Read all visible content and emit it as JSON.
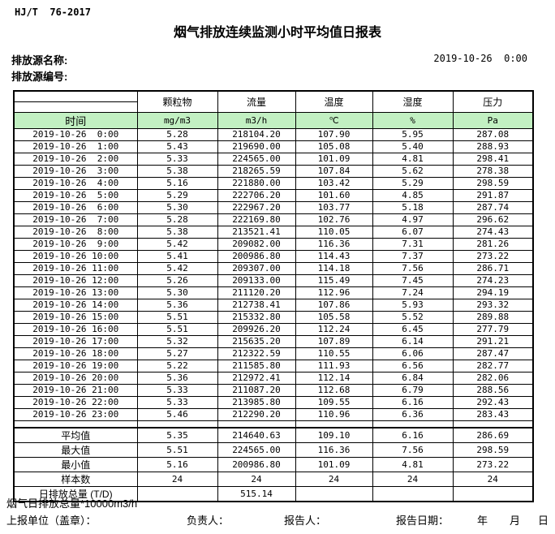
{
  "meta": {
    "standard": "HJ/T  76-2017",
    "title": "烟气排放连续监测小时平均值日报表",
    "source_name_label": "排放源名称:",
    "source_code_label": "排放源编号:",
    "report_datetime": "2019-10-26  0:00"
  },
  "colors": {
    "header_green": "#c2f0c2"
  },
  "table": {
    "time_header": "时间",
    "columns": [
      "颗粒物",
      "流量",
      "温度",
      "湿度",
      "压力"
    ],
    "units": [
      "mg/m3",
      "m3/h",
      "℃",
      "%",
      "Pa"
    ],
    "rows": [
      {
        "time": "2019-10-26  0:00",
        "values": [
          "5.28",
          "218104.20",
          "107.90",
          "5.95",
          "287.08"
        ]
      },
      {
        "time": "2019-10-26  1:00",
        "values": [
          "5.43",
          "219690.00",
          "105.08",
          "5.40",
          "288.93"
        ]
      },
      {
        "time": "2019-10-26  2:00",
        "values": [
          "5.33",
          "224565.00",
          "101.09",
          "4.81",
          "298.41"
        ]
      },
      {
        "time": "2019-10-26  3:00",
        "values": [
          "5.38",
          "218265.59",
          "107.84",
          "5.62",
          "278.38"
        ]
      },
      {
        "time": "2019-10-26  4:00",
        "values": [
          "5.16",
          "221880.00",
          "103.42",
          "5.29",
          "298.59"
        ]
      },
      {
        "time": "2019-10-26  5:00",
        "values": [
          "5.29",
          "222706.20",
          "101.60",
          "4.85",
          "291.87"
        ]
      },
      {
        "time": "2019-10-26  6:00",
        "values": [
          "5.30",
          "222967.20",
          "103.77",
          "5.18",
          "287.74"
        ]
      },
      {
        "time": "2019-10-26  7:00",
        "values": [
          "5.28",
          "222169.80",
          "102.76",
          "4.97",
          "296.62"
        ]
      },
      {
        "time": "2019-10-26  8:00",
        "values": [
          "5.38",
          "213521.41",
          "110.05",
          "6.07",
          "274.43"
        ]
      },
      {
        "time": "2019-10-26  9:00",
        "values": [
          "5.42",
          "209082.00",
          "116.36",
          "7.31",
          "281.26"
        ]
      },
      {
        "time": "2019-10-26 10:00",
        "values": [
          "5.41",
          "200986.80",
          "114.43",
          "7.37",
          "273.22"
        ]
      },
      {
        "time": "2019-10-26 11:00",
        "values": [
          "5.42",
          "209307.00",
          "114.18",
          "7.56",
          "286.71"
        ]
      },
      {
        "time": "2019-10-26 12:00",
        "values": [
          "5.26",
          "209133.00",
          "115.49",
          "7.45",
          "274.23"
        ]
      },
      {
        "time": "2019-10-26 13:00",
        "values": [
          "5.30",
          "211120.20",
          "112.96",
          "7.24",
          "294.19"
        ]
      },
      {
        "time": "2019-10-26 14:00",
        "values": [
          "5.36",
          "212738.41",
          "107.86",
          "5.93",
          "293.32"
        ]
      },
      {
        "time": "2019-10-26 15:00",
        "values": [
          "5.51",
          "215332.80",
          "105.58",
          "5.52",
          "289.88"
        ]
      },
      {
        "time": "2019-10-26 16:00",
        "values": [
          "5.51",
          "209926.20",
          "112.24",
          "6.45",
          "277.79"
        ]
      },
      {
        "time": "2019-10-26 17:00",
        "values": [
          "5.32",
          "215635.20",
          "107.89",
          "6.14",
          "291.21"
        ]
      },
      {
        "time": "2019-10-26 18:00",
        "values": [
          "5.27",
          "212322.59",
          "110.55",
          "6.06",
          "287.47"
        ]
      },
      {
        "time": "2019-10-26 19:00",
        "values": [
          "5.22",
          "211585.80",
          "111.93",
          "6.56",
          "282.77"
        ]
      },
      {
        "time": "2019-10-26 20:00",
        "values": [
          "5.36",
          "212972.41",
          "112.14",
          "6.84",
          "282.06"
        ]
      },
      {
        "time": "2019-10-26 21:00",
        "values": [
          "5.33",
          "211087.20",
          "112.68",
          "6.79",
          "288.56"
        ]
      },
      {
        "time": "2019-10-26 22:00",
        "values": [
          "5.33",
          "213985.80",
          "109.55",
          "6.16",
          "292.43"
        ]
      },
      {
        "time": "2019-10-26 23:00",
        "values": [
          "5.46",
          "212290.20",
          "110.96",
          "6.36",
          "283.43"
        ]
      }
    ],
    "summary": [
      {
        "label": "平均值",
        "values": [
          "5.35",
          "214640.63",
          "109.10",
          "6.16",
          "286.69"
        ]
      },
      {
        "label": "最大值",
        "values": [
          "5.51",
          "224565.00",
          "116.36",
          "7.56",
          "298.59"
        ]
      },
      {
        "label": "最小值",
        "values": [
          "5.16",
          "200986.80",
          "101.09",
          "4.81",
          "273.22"
        ]
      },
      {
        "label": "样本数",
        "values": [
          "24",
          "24",
          "24",
          "24",
          "24"
        ]
      },
      {
        "label": "日排放总量 (T/D)",
        "values": [
          "",
          "515.14",
          "",
          "",
          ""
        ]
      }
    ]
  },
  "footer": {
    "note": "烟气日排放总量*10000m3/h",
    "unit_label": "上报单位（盖章）：",
    "responsible_label": "负责人：",
    "reporter_label": "报告人：",
    "report_date_label": "报告日期：",
    "year_label": "年",
    "month_label": "月",
    "day_label": "日"
  }
}
